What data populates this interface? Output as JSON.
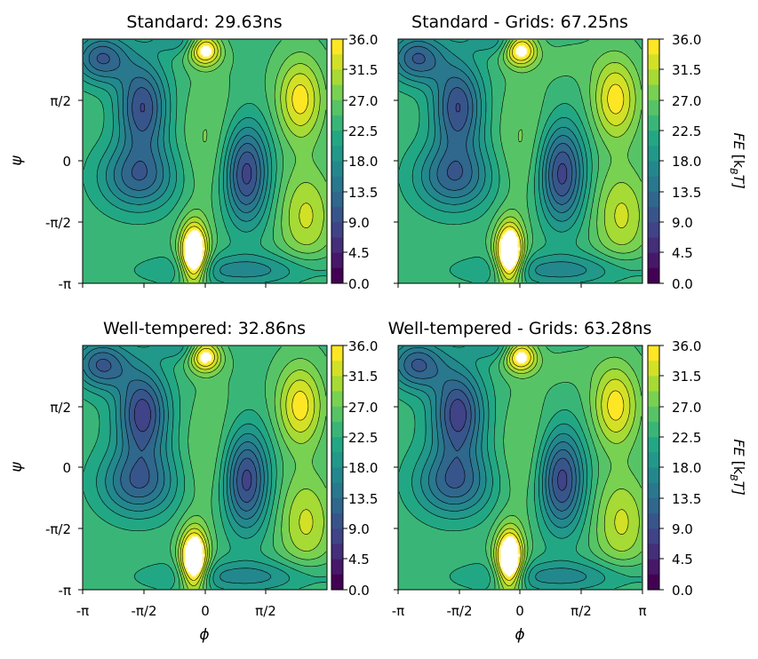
{
  "chart_data": {
    "type": "heatmap",
    "colormap": "viridis",
    "contour_levels": [
      0,
      2.25,
      4.5,
      6.75,
      9.0,
      11.25,
      13.5,
      15.75,
      18.0,
      20.25,
      22.5,
      24.75,
      27.0,
      29.25,
      31.5,
      33.75,
      36.0
    ],
    "x_range": [
      -3.14159,
      3.14159
    ],
    "y_range": [
      -3.14159,
      3.14159
    ],
    "x_ticks": [
      "-π",
      "-π/2",
      "0",
      "π/2",
      "π"
    ],
    "y_ticks": [
      "-π",
      "-π/2",
      "0",
      "π/2"
    ],
    "xlabel": "ϕ",
    "ylabel": "ψ",
    "colorbar": {
      "ticks": [
        "36.0",
        "31.5",
        "27.0",
        "22.5",
        "18.0",
        "13.5",
        "9.0",
        "4.5",
        "0.0"
      ],
      "label_prefix": "FE",
      "label_unit": "[k",
      "label_sub": "B",
      "label_end": "T]",
      "range": [
        0,
        36
      ]
    },
    "panels": [
      {
        "title": "Standard: 29.63ns"
      },
      {
        "title": "Standard - Grids: 67.25ns"
      },
      {
        "title": "Well-tempered: 32.86ns"
      },
      {
        "title": "Well-tempered - Grids: 63.28ns"
      }
    ]
  }
}
